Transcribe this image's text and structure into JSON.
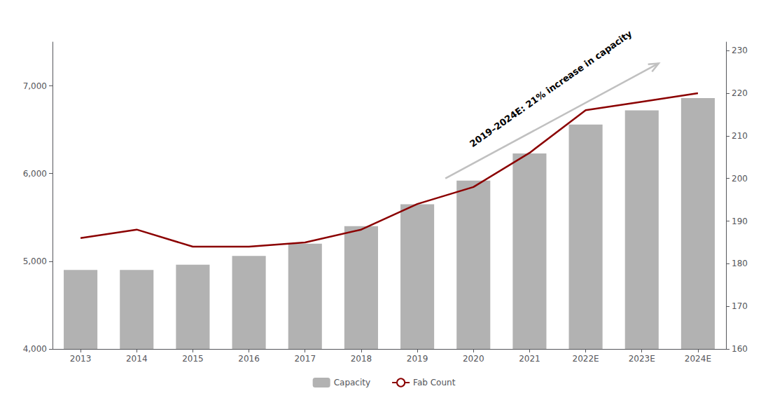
{
  "chart_data": {
    "type": "bar",
    "categories": [
      "2013",
      "2014",
      "2015",
      "2016",
      "2017",
      "2018",
      "2019",
      "2020",
      "2021",
      "2022E",
      "2023E",
      "2024E"
    ],
    "series": [
      {
        "name": "Capacity",
        "type": "bar",
        "color": "#b2b2b2",
        "values": [
          4900,
          4900,
          4960,
          5060,
          5200,
          5400,
          5650,
          5920,
          6230,
          6560,
          6720,
          6860
        ]
      },
      {
        "name": "Fab Count",
        "type": "line",
        "color": "#8b0000",
        "axis": "y2",
        "values": [
          186,
          188,
          184,
          184,
          185,
          188,
          194,
          198,
          206,
          216,
          218,
          220
        ]
      }
    ],
    "ylim": [
      4000,
      7500
    ],
    "yticks": [
      {
        "value": 4000,
        "label": "4,000"
      },
      {
        "value": 5000,
        "label": "5,000"
      },
      {
        "value": 6000,
        "label": "6,000"
      },
      {
        "value": 7000,
        "label": "7,000"
      }
    ],
    "y2lim": [
      160,
      232
    ],
    "y2ticks": [
      160,
      170,
      180,
      190,
      200,
      210,
      220,
      230
    ],
    "annotation": "2019–2024E: 21% increase in capacity",
    "grid": false,
    "legend": "bottom"
  }
}
